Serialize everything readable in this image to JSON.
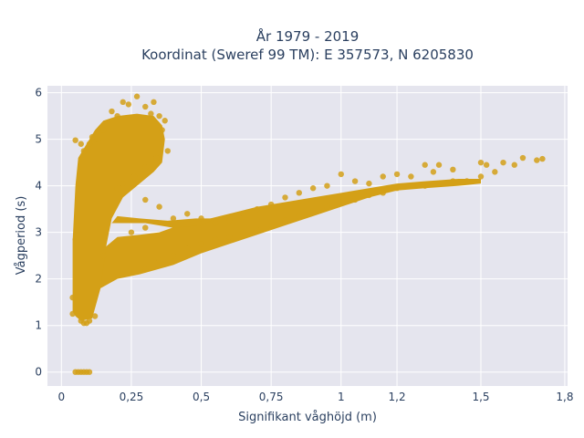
{
  "chart_data": {
    "type": "scatter",
    "title": "År 1979 - 2019",
    "subtitle": "Koordinat (Sweref 99 TM): E 357573, N 6205830",
    "xlabel": "Signifikant våghöjd (m)",
    "ylabel": "Vågperiod (s)",
    "xlim": [
      -0.05,
      1.81
    ],
    "ylim": [
      -0.3,
      6.15
    ],
    "xticks": [
      0,
      0.25,
      0.5,
      0.75,
      1,
      1.2,
      1.5,
      1.8
    ],
    "xtick_labels": [
      "0",
      "0,25",
      "0,5",
      "0,75",
      "1",
      "1,2",
      "1,5",
      "1,8"
    ],
    "yticks": [
      0,
      1,
      2,
      3,
      4,
      5,
      6
    ],
    "ytick_labels": [
      "0",
      "1",
      "2",
      "3",
      "4",
      "5",
      "6"
    ],
    "grid": true,
    "marker_color": "#D4A017",
    "plot_background": "#E5E5EE",
    "series": [
      {
        "points": [
          [
            0.05,
            0.0
          ],
          [
            0.06,
            0.0
          ],
          [
            0.07,
            0.0
          ],
          [
            0.08,
            0.0
          ],
          [
            0.09,
            0.0
          ],
          [
            0.1,
            0.0
          ],
          [
            0.04,
            1.25
          ],
          [
            0.04,
            1.6
          ],
          [
            0.05,
            2.85
          ],
          [
            0.05,
            4.98
          ],
          [
            0.06,
            1.8
          ],
          [
            0.07,
            1.1
          ],
          [
            0.08,
            1.05
          ],
          [
            0.09,
            1.05
          ],
          [
            0.1,
            1.1
          ],
          [
            0.12,
            1.2
          ],
          [
            0.07,
            4.9
          ],
          [
            0.08,
            4.75
          ],
          [
            0.1,
            4.9
          ],
          [
            0.11,
            5.05
          ],
          [
            0.13,
            5.0
          ],
          [
            0.15,
            5.2
          ],
          [
            0.18,
            5.6
          ],
          [
            0.2,
            5.5
          ],
          [
            0.22,
            5.8
          ],
          [
            0.24,
            5.75
          ],
          [
            0.27,
            5.92
          ],
          [
            0.3,
            5.7
          ],
          [
            0.32,
            5.55
          ],
          [
            0.33,
            5.8
          ],
          [
            0.35,
            5.5
          ],
          [
            0.37,
            5.4
          ],
          [
            0.36,
            5.2
          ],
          [
            0.38,
            4.75
          ],
          [
            0.34,
            4.6
          ],
          [
            0.3,
            4.4
          ],
          [
            0.26,
            4.2
          ],
          [
            0.22,
            4.05
          ],
          [
            0.2,
            3.95
          ],
          [
            0.3,
            3.7
          ],
          [
            0.35,
            3.55
          ],
          [
            0.4,
            3.3
          ],
          [
            0.45,
            3.4
          ],
          [
            0.5,
            3.3
          ],
          [
            0.55,
            3.2
          ],
          [
            0.6,
            3.25
          ],
          [
            0.65,
            3.4
          ],
          [
            0.7,
            3.5
          ],
          [
            0.75,
            3.6
          ],
          [
            0.8,
            3.75
          ],
          [
            0.85,
            3.85
          ],
          [
            0.9,
            3.95
          ],
          [
            0.95,
            4.0
          ],
          [
            1.0,
            4.25
          ],
          [
            1.05,
            4.1
          ],
          [
            1.1,
            4.05
          ],
          [
            1.15,
            4.2
          ],
          [
            1.2,
            4.25
          ],
          [
            1.25,
            4.2
          ],
          [
            1.3,
            4.45
          ],
          [
            1.33,
            4.3
          ],
          [
            1.35,
            4.45
          ],
          [
            1.4,
            4.35
          ],
          [
            1.45,
            4.1
          ],
          [
            1.5,
            4.5
          ],
          [
            1.52,
            4.45
          ],
          [
            1.58,
            4.5
          ],
          [
            1.62,
            4.45
          ],
          [
            1.65,
            4.6
          ],
          [
            1.7,
            4.55
          ],
          [
            1.72,
            4.58
          ],
          [
            0.3,
            2.2
          ],
          [
            0.35,
            2.4
          ],
          [
            0.4,
            2.5
          ],
          [
            0.45,
            2.65
          ],
          [
            0.5,
            2.75
          ],
          [
            0.55,
            2.85
          ],
          [
            0.6,
            2.9
          ],
          [
            0.65,
            3.0
          ],
          [
            0.7,
            3.05
          ],
          [
            0.75,
            3.15
          ],
          [
            0.8,
            3.25
          ],
          [
            0.85,
            3.35
          ],
          [
            0.9,
            3.45
          ],
          [
            0.95,
            3.55
          ],
          [
            1.0,
            3.65
          ],
          [
            1.05,
            3.7
          ],
          [
            1.1,
            3.8
          ],
          [
            1.15,
            3.85
          ],
          [
            1.2,
            3.95
          ],
          [
            1.25,
            4.0
          ],
          [
            1.3,
            4.0
          ],
          [
            1.35,
            4.05
          ],
          [
            1.4,
            4.1
          ],
          [
            1.45,
            4.1
          ],
          [
            1.5,
            4.2
          ],
          [
            1.55,
            4.3
          ],
          [
            0.25,
            3.0
          ],
          [
            0.3,
            3.1
          ],
          [
            0.2,
            2.8
          ],
          [
            0.15,
            2.5
          ]
        ]
      }
    ]
  }
}
